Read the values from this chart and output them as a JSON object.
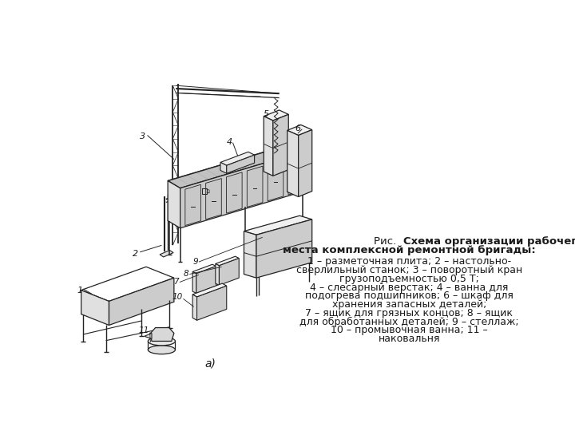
{
  "background_color": "#ffffff",
  "fig_width": 7.2,
  "fig_height": 5.4,
  "dpi": 100,
  "text_color": "#1a1a1a",
  "line_color": "#222222",
  "caption_line1_normal": "Рис.  ",
  "caption_line1_bold": "Схема организации рабочего",
  "caption_line2_bold": "места комплексной ремонтной бригады:",
  "caption_lines": [
    "1 – разметочная плита; 2 – настольно-",
    "сверлильный станок; 3 – поворотный кран",
    "грузоподъемностью 0,5 Т;",
    "4 – слесарный верстак; 4 – ванна для",
    "подогрева подшипников; 6 – шкаф для",
    "хранения запасных деталей;",
    "7 – ящик для грязных концов; 8 – ящик",
    "для обработанных деталей; 9 – стеллаж;",
    "10 – промывочная ванна; 11 –",
    "наковальня"
  ],
  "label_a": "а)"
}
